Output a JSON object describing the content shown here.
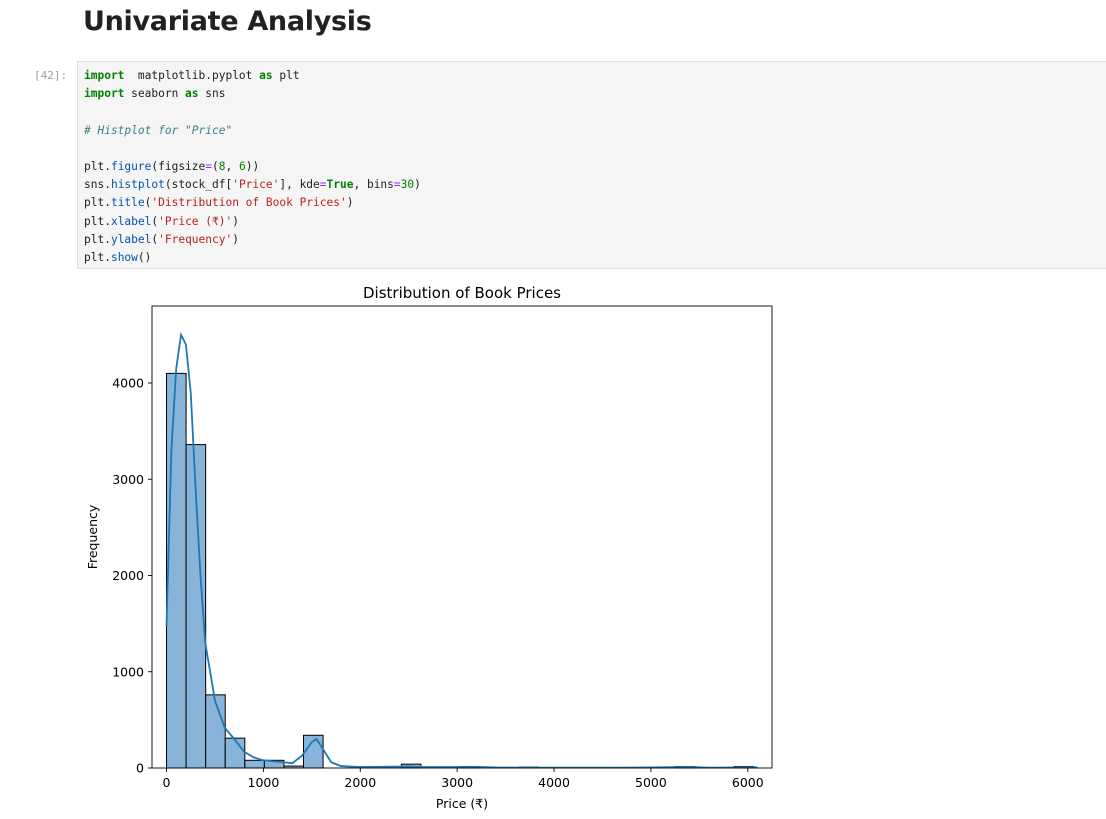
{
  "notebook": {
    "heading": "Univariate Analysis",
    "cell_prompt": "[42]:"
  },
  "code_cell": {
    "lines": [
      [
        [
          "kw",
          "import"
        ],
        [
          "",
          "  matplotlib.pyplot "
        ],
        [
          "kw",
          "as"
        ],
        [
          "",
          " plt"
        ]
      ],
      [
        [
          "kw",
          "import"
        ],
        [
          "",
          " seaborn "
        ],
        [
          "kw",
          "as"
        ],
        [
          "",
          " sns"
        ]
      ],
      [],
      [
        [
          "cm",
          "# Histplot for \"Price\""
        ]
      ],
      [],
      [
        [
          "",
          "plt."
        ],
        [
          "fn",
          "figure"
        ],
        [
          "",
          "(figsize"
        ],
        [
          "op",
          "="
        ],
        [
          "",
          "("
        ],
        [
          "nu",
          "8"
        ],
        [
          "",
          ", "
        ],
        [
          "nu",
          "6"
        ],
        [
          "",
          "))"
        ]
      ],
      [
        [
          "",
          "sns."
        ],
        [
          "fn",
          "histplot"
        ],
        [
          "",
          "(stock_df["
        ],
        [
          "st",
          "'Price'"
        ],
        [
          "",
          "], kde"
        ],
        [
          "op",
          "="
        ],
        [
          "kw",
          "True"
        ],
        [
          "",
          ", bins"
        ],
        [
          "op",
          "="
        ],
        [
          "nu",
          "30"
        ],
        [
          "",
          ")"
        ]
      ],
      [
        [
          "",
          "plt."
        ],
        [
          "fn",
          "title"
        ],
        [
          "",
          "("
        ],
        [
          "st",
          "'Distribution of Book Prices'"
        ],
        [
          "",
          ")"
        ]
      ],
      [
        [
          "",
          "plt."
        ],
        [
          "fn",
          "xlabel"
        ],
        [
          "",
          "("
        ],
        [
          "st",
          "'Price (₹)'"
        ],
        [
          "",
          ")"
        ]
      ],
      [
        [
          "",
          "plt."
        ],
        [
          "fn",
          "ylabel"
        ],
        [
          "",
          "("
        ],
        [
          "st",
          "'Frequency'"
        ],
        [
          "",
          ")"
        ]
      ],
      [
        [
          "",
          "plt."
        ],
        [
          "fn",
          "show"
        ],
        [
          "",
          "()"
        ]
      ]
    ]
  },
  "chart_data": {
    "type": "bar",
    "title": "Distribution of Book Prices",
    "xlabel": "Price (₹)",
    "ylabel": "Frequency",
    "xlim": [
      -150,
      6250
    ],
    "ylim": [
      0,
      4800
    ],
    "bin_start": 0,
    "bin_width": 202,
    "values": [
      4100,
      3360,
      760,
      310,
      80,
      80,
      20,
      340,
      0,
      0,
      0,
      0,
      40,
      0,
      0,
      15,
      0,
      0,
      10,
      0,
      0,
      5,
      0,
      0,
      0,
      0,
      15,
      0,
      0,
      15
    ],
    "x_ticks": [
      0,
      1000,
      2000,
      3000,
      4000,
      5000,
      6000
    ],
    "y_ticks": [
      0,
      1000,
      2000,
      3000,
      4000
    ],
    "kde": [
      [
        0,
        1480
      ],
      [
        50,
        3300
      ],
      [
        100,
        4150
      ],
      [
        150,
        4500
      ],
      [
        200,
        4400
      ],
      [
        250,
        3900
      ],
      [
        300,
        2900
      ],
      [
        350,
        2000
      ],
      [
        400,
        1300
      ],
      [
        500,
        700
      ],
      [
        600,
        420
      ],
      [
        700,
        300
      ],
      [
        800,
        170
      ],
      [
        900,
        110
      ],
      [
        1000,
        80
      ],
      [
        1100,
        70
      ],
      [
        1200,
        60
      ],
      [
        1300,
        50
      ],
      [
        1400,
        130
      ],
      [
        1500,
        270
      ],
      [
        1550,
        300
      ],
      [
        1600,
        220
      ],
      [
        1700,
        60
      ],
      [
        1800,
        20
      ],
      [
        2000,
        10
      ],
      [
        2500,
        15
      ],
      [
        2600,
        10
      ],
      [
        3000,
        10
      ],
      [
        3200,
        12
      ],
      [
        3400,
        6
      ],
      [
        4000,
        4
      ],
      [
        4600,
        4
      ],
      [
        5000,
        6
      ],
      [
        5400,
        12
      ],
      [
        5600,
        4
      ],
      [
        6000,
        6
      ],
      [
        6100,
        8
      ]
    ],
    "colors": {
      "bar_fill": "#87b4d8",
      "bar_edge": "#000000",
      "kde_line": "#1f77b4"
    },
    "grid": false,
    "legend": "none"
  }
}
